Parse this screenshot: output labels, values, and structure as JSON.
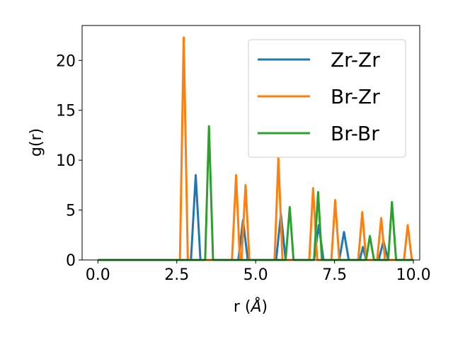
{
  "chart_data": {
    "type": "line",
    "xlabel": "r (",
    "xlabel_unit": "Å",
    "xlabel_close": ")",
    "ylabel": "g(r)",
    "xlim": [
      -0.5,
      10.2
    ],
    "ylim": [
      0,
      23.5
    ],
    "xticks": [
      0.0,
      2.5,
      5.0,
      7.5,
      10.0
    ],
    "xtick_labels": [
      "0.0",
      "2.5",
      "5.0",
      "7.5",
      "10.0"
    ],
    "yticks": [
      0,
      5,
      10,
      15,
      20
    ],
    "ytick_labels": [
      "0",
      "5",
      "10",
      "15",
      "20"
    ],
    "grid": false,
    "legend_position": "top-right",
    "series": [
      {
        "name": "Zr-Zr",
        "color": "#1f77b4",
        "x": [
          0.0,
          2.95,
          3.1,
          3.25,
          4.45,
          4.6,
          4.75,
          5.65,
          5.8,
          5.95,
          6.85,
          7.0,
          7.15,
          7.65,
          7.8,
          7.95,
          8.3,
          8.4,
          8.5,
          8.9,
          9.05,
          9.2,
          10.0
        ],
        "y": [
          0,
          0,
          8.5,
          0,
          0,
          4.0,
          0,
          0,
          4.6,
          0,
          0,
          3.5,
          0,
          0,
          2.8,
          0,
          0,
          1.3,
          0,
          0,
          1.9,
          0,
          0
        ]
      },
      {
        "name": "Br-Zr",
        "color": "#ff7f0e",
        "x": [
          0.0,
          2.6,
          2.72,
          2.85,
          4.25,
          4.38,
          4.5,
          4.55,
          4.68,
          4.8,
          5.6,
          5.72,
          5.85,
          6.7,
          6.82,
          6.95,
          7.4,
          7.52,
          7.65,
          8.25,
          8.38,
          8.5,
          8.85,
          8.98,
          9.1,
          9.7,
          9.82,
          9.95,
          10.0
        ],
        "y": [
          0,
          0,
          22.3,
          0,
          0,
          8.5,
          0,
          0,
          7.5,
          0,
          0,
          10.2,
          0,
          0,
          7.2,
          0,
          0,
          6.0,
          0,
          0,
          4.8,
          0,
          0,
          4.2,
          0,
          0,
          3.5,
          0,
          0
        ]
      },
      {
        "name": "Br-Br",
        "color": "#2ca02c",
        "x": [
          0.0,
          3.4,
          3.52,
          3.65,
          5.95,
          6.08,
          6.2,
          6.85,
          6.98,
          7.1,
          8.5,
          8.62,
          8.75,
          9.2,
          9.32,
          9.45,
          10.0
        ],
        "y": [
          0,
          0,
          13.4,
          0,
          0,
          5.3,
          0,
          0,
          6.8,
          0,
          0,
          2.4,
          0,
          0,
          5.8,
          0,
          0
        ]
      }
    ]
  }
}
